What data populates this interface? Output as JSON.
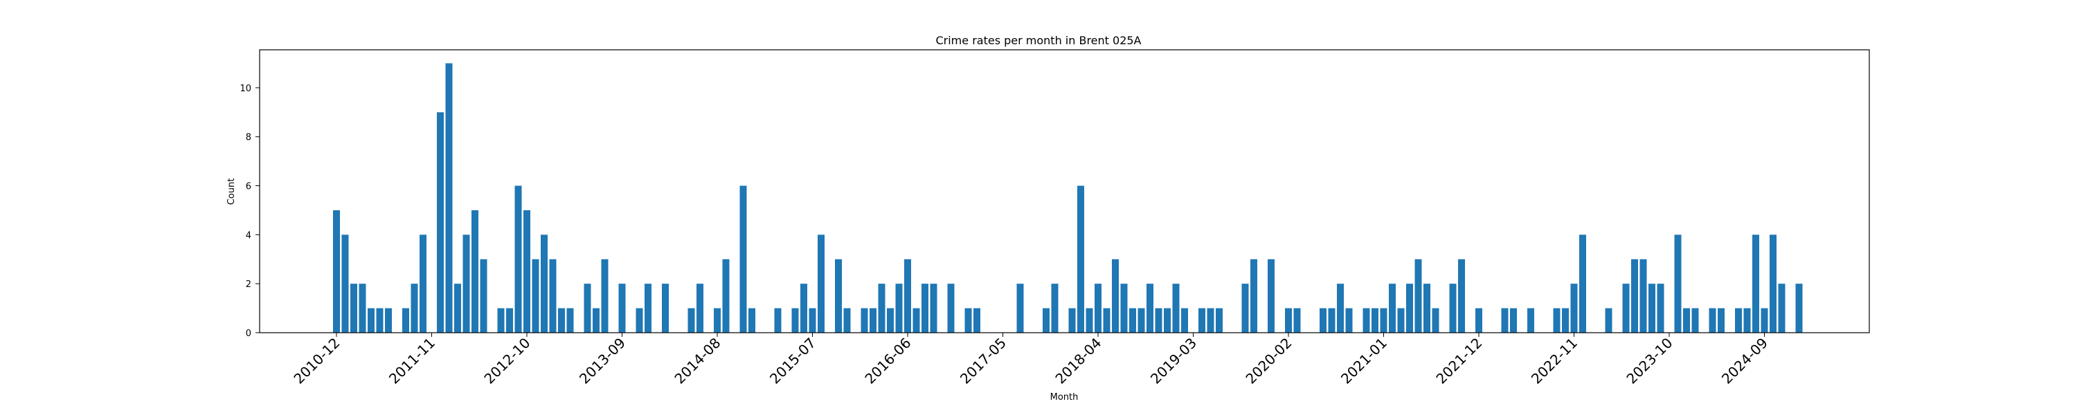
{
  "chart_data": {
    "type": "bar",
    "title": "Crime rates per month in Brent 025A",
    "xlabel": "Month",
    "ylabel": "Count",
    "ylim": [
      0,
      11.55
    ],
    "yticks": [
      0,
      2,
      4,
      6,
      8,
      10
    ],
    "start_month": "2010-12",
    "xtick_labels": [
      "2010-12",
      "2011-11",
      "2012-10",
      "2013-09",
      "2014-08",
      "2015-07",
      "2016-06",
      "2017-05",
      "2018-04",
      "2019-03",
      "2020-02",
      "2021-01",
      "2021-12",
      "2022-11",
      "2023-10",
      "2024-09"
    ],
    "bar_color": "#1f77b4",
    "grid": false,
    "values": [
      5,
      4,
      2,
      2,
      1,
      1,
      1,
      0,
      1,
      2,
      4,
      0,
      9,
      11,
      2,
      4,
      5,
      3,
      0,
      1,
      1,
      6,
      5,
      3,
      4,
      3,
      1,
      1,
      0,
      2,
      1,
      3,
      0,
      2,
      0,
      1,
      2,
      0,
      2,
      0,
      0,
      1,
      2,
      0,
      1,
      3,
      0,
      6,
      1,
      0,
      0,
      1,
      0,
      1,
      2,
      1,
      4,
      0,
      3,
      1,
      0,
      1,
      1,
      2,
      1,
      2,
      3,
      1,
      2,
      2,
      0,
      2,
      0,
      1,
      1,
      0,
      0,
      0,
      0,
      2,
      0,
      0,
      1,
      2,
      0,
      1,
      6,
      1,
      2,
      1,
      3,
      2,
      1,
      1,
      2,
      1,
      1,
      2,
      1,
      0,
      1,
      1,
      1,
      0,
      0,
      2,
      3,
      0,
      3,
      0,
      1,
      1,
      0,
      0,
      1,
      1,
      2,
      1,
      0,
      1,
      1,
      1,
      2,
      1,
      2,
      3,
      2,
      1,
      0,
      2,
      3,
      0,
      1,
      0,
      0,
      1,
      1,
      0,
      1,
      0,
      0,
      1,
      1,
      2,
      4,
      0,
      0,
      1,
      0,
      2,
      3,
      3,
      2,
      2,
      0,
      4,
      1,
      1,
      0,
      1,
      1,
      0,
      1,
      1,
      4,
      1,
      4,
      2,
      0,
      2
    ]
  }
}
